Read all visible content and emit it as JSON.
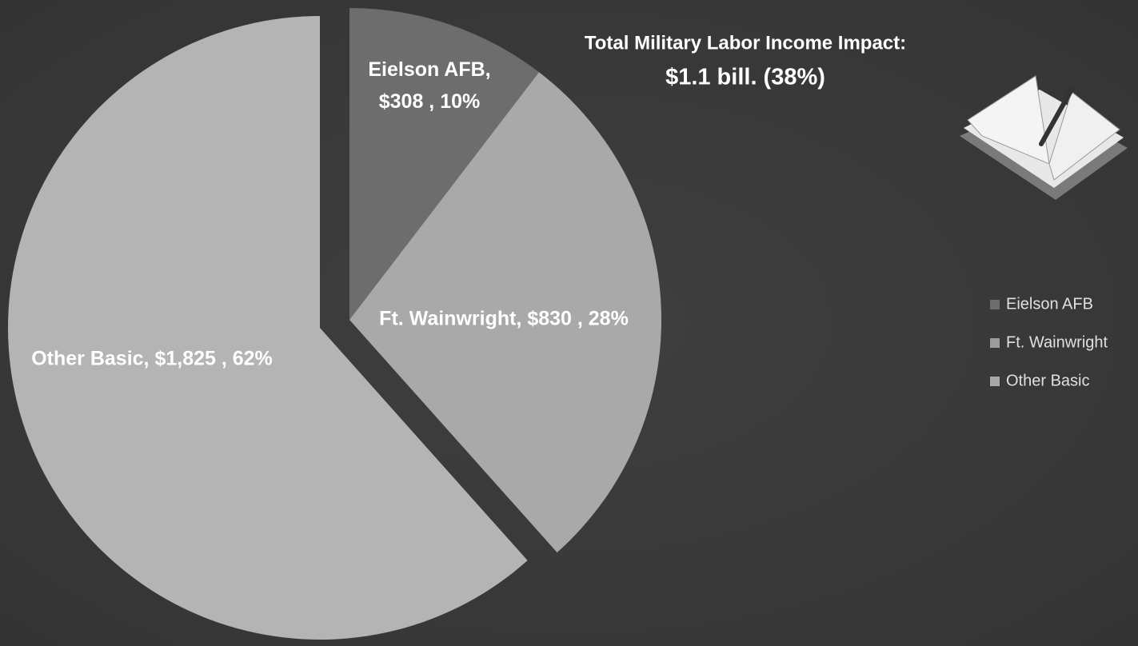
{
  "chart_data": {
    "type": "pie",
    "annotations": [
      "Total Military Labor Income Impact:",
      "$1.1 bill. (38%)"
    ],
    "categories": [
      "Eielson AFB",
      "Ft. Wainwright",
      "Other Basic"
    ],
    "values": [
      308,
      830,
      1825
    ],
    "value_labels": [
      "Eielson AFB, $308 , 10%",
      "Ft. Wainwright,  $830 , 28%",
      "Other Basic,  $1,825 , 62%"
    ],
    "colors": [
      "#6d6d6d",
      "#a9a9a9",
      "#b4b4b4"
    ],
    "legend_colors": [
      "#6d6d6d",
      "#9c9c9c",
      "#a8a8a8"
    ],
    "legend": "right"
  }
}
